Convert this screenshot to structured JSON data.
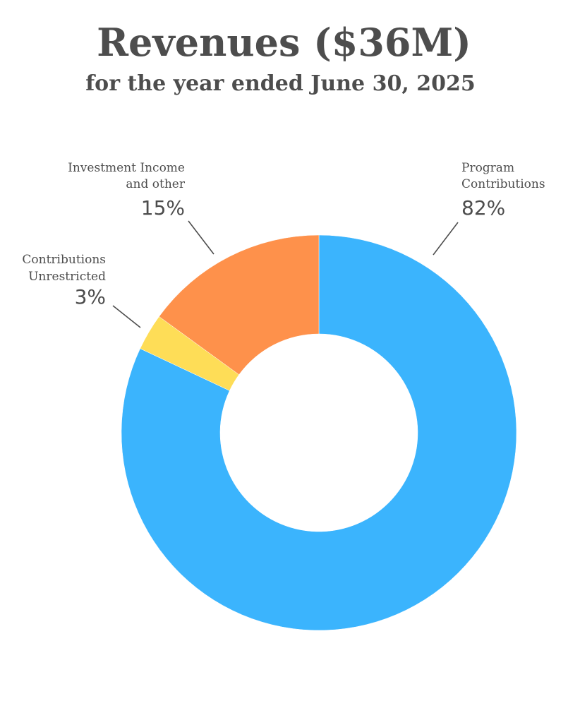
{
  "chart_data": {
    "type": "pie",
    "title": "Revenues ($36M)",
    "subtitle": "for the year ended June 30, 2025",
    "donut": true,
    "slices": [
      {
        "label": "Program Contributions",
        "label_lines": [
          "Program",
          "Contributions"
        ],
        "value": 82,
        "display": "82%",
        "color": "#3bb4fd"
      },
      {
        "label": "Contributions Unrestricted",
        "label_lines": [
          "Contributions",
          "Unrestricted"
        ],
        "value": 3,
        "display": "3%",
        "color": "#fedd57"
      },
      {
        "label": "Investment Income and other",
        "label_lines": [
          "Investment Income",
          "and other"
        ],
        "value": 15,
        "display": "15%",
        "color": "#fe914b"
      }
    ]
  }
}
